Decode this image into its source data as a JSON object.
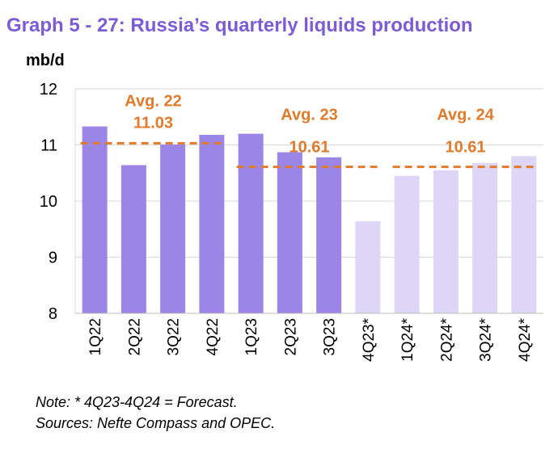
{
  "title": "Graph 5 - 27: Russia’s quarterly liquids production",
  "unit_label": "mb/d",
  "notes": {
    "line1": "Note: * 4Q23-4Q24 = Forecast.",
    "line2": "Sources: Nefte Compass and OPEC."
  },
  "colors": {
    "actual": "#9b86e8",
    "forecast": "#ddd6f7",
    "avg_line": "#e07b2e",
    "avg_text": "#e07b2e",
    "title": "#7b5cd6",
    "gridline": "#d9d9d9"
  },
  "chart_data": {
    "type": "bar",
    "categories": [
      "1Q22",
      "2Q22",
      "3Q22",
      "4Q22",
      "1Q23",
      "2Q23",
      "3Q23",
      "4Q23*",
      "1Q24*",
      "2Q24*",
      "3Q24*",
      "4Q24*"
    ],
    "values": [
      11.33,
      10.64,
      11.01,
      11.18,
      11.2,
      10.87,
      10.78,
      9.64,
      10.45,
      10.55,
      10.68,
      10.8
    ],
    "forecast_flags": [
      false,
      false,
      false,
      false,
      false,
      false,
      false,
      true,
      true,
      true,
      true,
      true
    ],
    "ylim": [
      8,
      12
    ],
    "yticks": [
      8,
      9,
      10,
      11,
      12
    ],
    "ylabel": "mb/d",
    "grid": true,
    "averages": [
      {
        "label": "Avg. 22",
        "value": 11.03,
        "value_text": "11.03",
        "from": 0,
        "to": 3
      },
      {
        "label": "Avg. 23",
        "value": 10.61,
        "value_text": "10.61",
        "from": 4,
        "to": 7
      },
      {
        "label": "Avg. 24",
        "value": 10.61,
        "value_text": "10.61",
        "from": 8,
        "to": 11
      }
    ]
  }
}
